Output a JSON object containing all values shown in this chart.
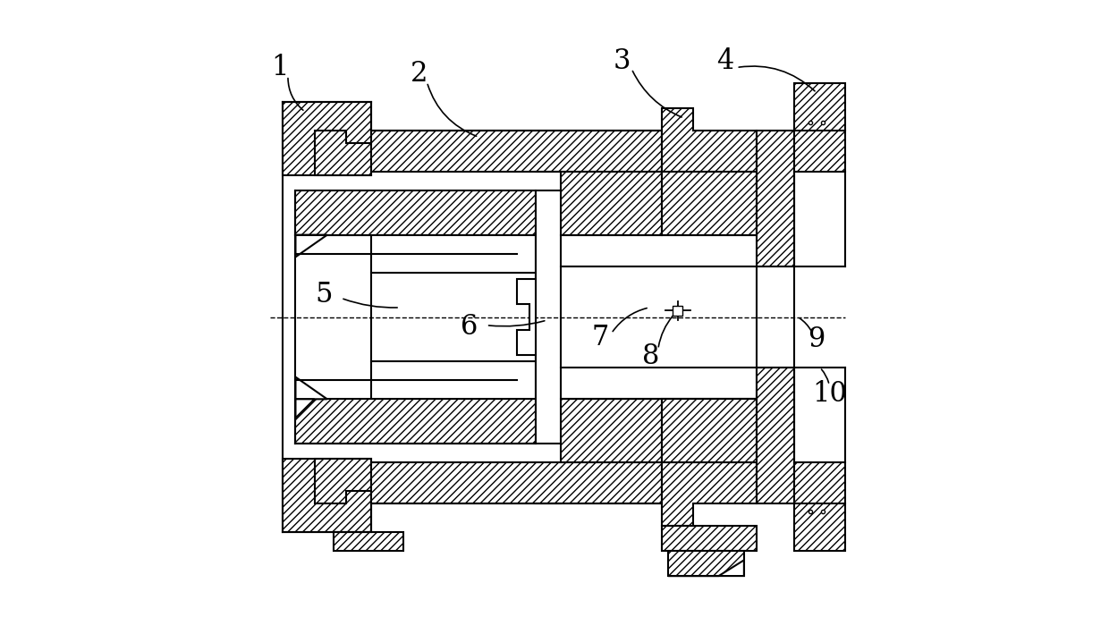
{
  "bg_color": "#ffffff",
  "line_color": "#000000",
  "hatch_pattern": "////",
  "label_fontsize": 22,
  "fig_width": 12.4,
  "fig_height": 7.09
}
